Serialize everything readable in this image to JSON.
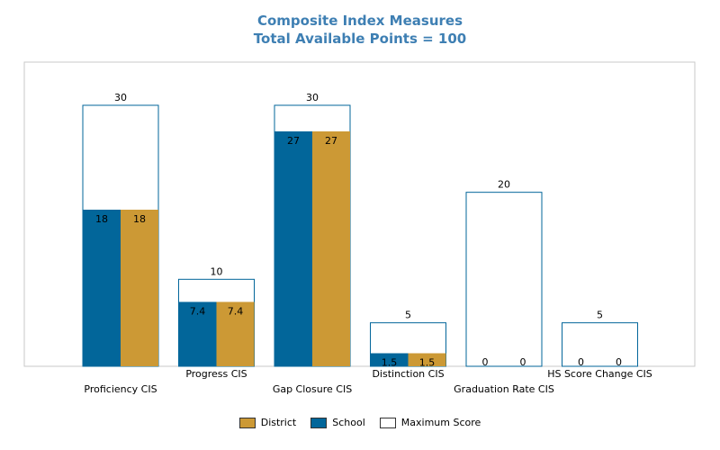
{
  "chart_data": {
    "type": "bar",
    "title": "Composite Index Measures",
    "subtitle": "Total Available Points = 100",
    "categories": [
      "Proficiency CIS",
      "Progress CIS",
      "Gap Closure CIS",
      "Distinction CIS",
      "Graduation Rate CIS",
      "HS Score Change CIS"
    ],
    "series": [
      {
        "name": "School",
        "color": "#02669a",
        "values": [
          18,
          7.4,
          27,
          1.5,
          0,
          0
        ]
      },
      {
        "name": "District",
        "color": "#cc9935",
        "values": [
          18,
          7.4,
          27,
          1.5,
          0,
          0
        ]
      }
    ],
    "max_score": {
      "name": "Maximum Score",
      "color": "#ffffff",
      "values": [
        30,
        10,
        30,
        5,
        20,
        5
      ]
    },
    "value_labels": {
      "school": [
        "18",
        "7.4",
        "27",
        "1.5",
        "0",
        "0"
      ],
      "district": [
        "18",
        "7.4",
        "27",
        "1.5",
        "0",
        "0"
      ],
      "max": [
        "30",
        "10",
        "30",
        "5",
        "20",
        "5"
      ]
    },
    "legend": [
      {
        "label": "District",
        "color": "#cc9935"
      },
      {
        "label": "School",
        "color": "#02669a"
      },
      {
        "label": "Maximum Score",
        "color": "#ffffff"
      }
    ],
    "ylim": [
      0,
      32
    ],
    "legend_position": "bottom",
    "grid": false
  }
}
